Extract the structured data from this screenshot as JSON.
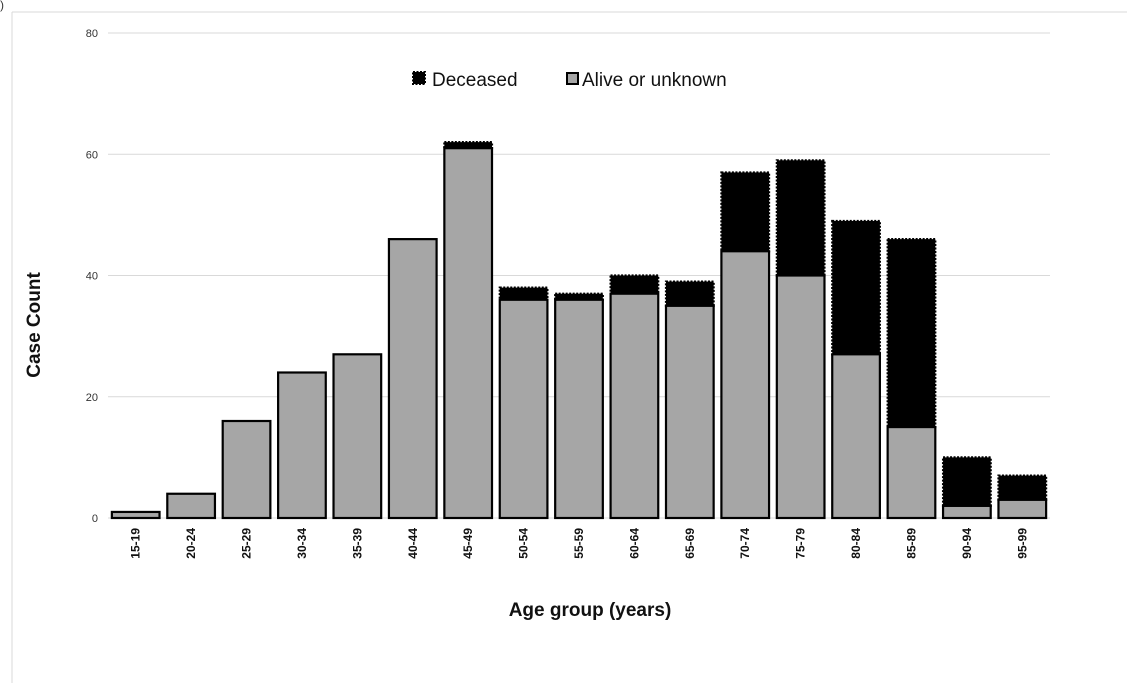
{
  "panel_label": ")",
  "chart_data": {
    "type": "bar",
    "stacked": true,
    "categories": [
      "15-19",
      "20-24",
      "25-29",
      "30-34",
      "35-39",
      "40-44",
      "45-49",
      "50-54",
      "55-59",
      "60-64",
      "65-69",
      "70-74",
      "75-79",
      "80-84",
      "85-89",
      "90-94",
      "95-99"
    ],
    "series": [
      {
        "name": "Alive or unknown",
        "color": "#a6a6a6",
        "values": [
          1,
          4,
          16,
          24,
          27,
          46,
          61,
          36,
          36,
          37,
          35,
          44,
          40,
          27,
          15,
          2,
          3
        ]
      },
      {
        "name": "Deceased",
        "color": "#000000",
        "values": [
          0,
          0,
          0,
          0,
          0,
          0,
          1,
          2,
          1,
          3,
          4,
          13,
          19,
          22,
          31,
          8,
          4
        ]
      }
    ],
    "legend_order": [
      "Deceased",
      "Alive or unknown"
    ],
    "legend_position": "top-center",
    "xlabel": "Age group (years)",
    "ylabel": "Case Count",
    "ylim": [
      0,
      80
    ],
    "yticks": [
      0,
      20,
      40,
      60,
      80
    ],
    "grid": true
  }
}
